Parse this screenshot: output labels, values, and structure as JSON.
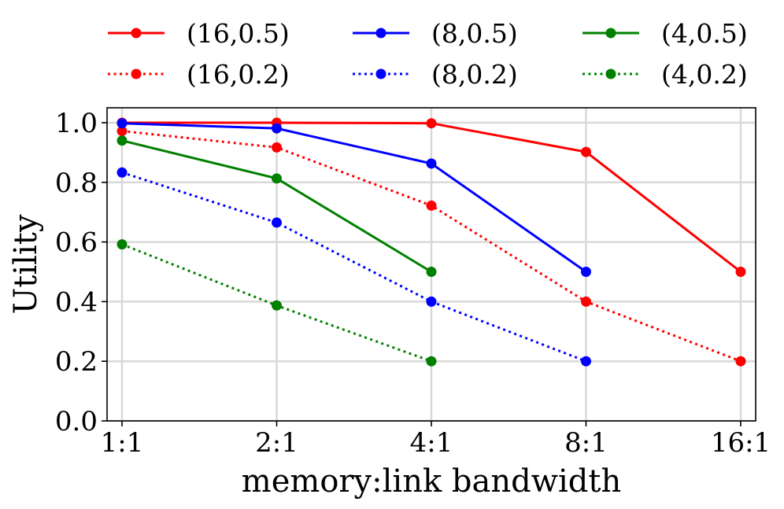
{
  "chart_data": {
    "type": "line",
    "xlabel": "memory:link bandwidth",
    "ylabel": "Utility",
    "categories": [
      "1:1",
      "2:1",
      "4:1",
      "8:1",
      "16:1"
    ],
    "ylim": [
      0.0,
      1.05
    ],
    "yticks": [
      "0.0",
      "0.2",
      "0.4",
      "0.6",
      "0.8",
      "1.0"
    ],
    "grid": true,
    "legend_placement": "top, outside plot, 3 columns",
    "series": [
      {
        "name": "(16,0.5)",
        "color": "#ff0000",
        "style": "solid",
        "values": [
          1.0,
          1.0,
          0.998,
          0.902,
          0.5
        ]
      },
      {
        "name": "(16,0.2)",
        "color": "#ff0000",
        "style": "dotted",
        "values": [
          0.972,
          0.917,
          0.722,
          0.4,
          0.2
        ]
      },
      {
        "name": "(8,0.5)",
        "color": "#0000ff",
        "style": "solid",
        "values": [
          0.998,
          0.981,
          0.863,
          0.5,
          null
        ]
      },
      {
        "name": "(8,0.2)",
        "color": "#0000ff",
        "style": "dotted",
        "values": [
          0.833,
          0.665,
          0.4,
          0.2,
          null
        ]
      },
      {
        "name": "(4,0.5)",
        "color": "#008000",
        "style": "solid",
        "values": [
          0.94,
          0.813,
          0.5,
          null,
          null
        ]
      },
      {
        "name": "(4,0.2)",
        "color": "#008000",
        "style": "dotted",
        "values": [
          0.592,
          0.387,
          0.2,
          null,
          null
        ]
      }
    ]
  }
}
